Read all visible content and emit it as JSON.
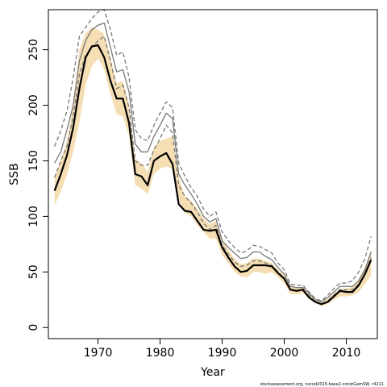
{
  "chart_data": {
    "type": "line",
    "xlabel": "Year",
    "ylabel": "SSB",
    "xlim": [
      1962,
      2015
    ],
    "ylim": [
      -10,
      286
    ],
    "x_ticks": [
      1970,
      1980,
      1990,
      2000,
      2010
    ],
    "y_ticks": [
      0,
      50,
      100,
      150,
      200,
      250
    ],
    "grid": false,
    "legend": "none",
    "x": [
      1963,
      1964,
      1965,
      1966,
      1967,
      1968,
      1969,
      1970,
      1971,
      1972,
      1973,
      1974,
      1975,
      1976,
      1977,
      1978,
      1979,
      1980,
      1981,
      1982,
      1983,
      1984,
      1985,
      1986,
      1987,
      1988,
      1989,
      1990,
      1991,
      1992,
      1993,
      1994,
      1995,
      1996,
      1997,
      1998,
      1999,
      2000,
      2001,
      2002,
      2003,
      2004,
      2005,
      2006,
      2007,
      2008,
      2009,
      2010,
      2011,
      2012,
      2013,
      2014
    ],
    "series": [
      {
        "style": "band",
        "color": "#f5deb3",
        "lower": [
          110,
          122,
          138,
          158,
          185,
          218,
          235,
          242,
          232,
          210,
          192,
          190,
          172,
          128,
          125,
          120,
          138,
          143,
          145,
          143,
          115,
          103,
          100,
          92,
          86,
          80,
          80,
          65,
          58,
          50,
          46,
          45,
          50,
          50,
          48,
          50,
          45,
          40,
          30,
          30,
          31,
          26,
          22,
          19,
          21,
          25,
          28,
          28,
          29,
          32,
          39,
          47
        ],
        "upper": [
          135,
          150,
          168,
          200,
          250,
          265,
          270,
          268,
          264,
          243,
          220,
          222,
          200,
          152,
          148,
          140,
          162,
          168,
          170,
          172,
          135,
          118,
          114,
          107,
          98,
          93,
          96,
          80,
          70,
          62,
          57,
          58,
          62,
          62,
          60,
          58,
          52,
          48,
          37,
          36,
          36,
          30,
          26,
          23,
          26,
          31,
          35,
          35,
          37,
          44,
          54,
          70
        ]
      },
      {
        "style": "solid",
        "color": "#000000",
        "values": [
          123,
          138,
          155,
          180,
          215,
          243,
          253,
          254,
          243,
          222,
          206,
          206,
          184,
          138,
          136,
          128,
          150,
          154,
          157,
          147,
          111,
          105,
          104,
          96,
          88,
          87,
          88,
          72,
          63,
          55,
          50,
          51,
          56,
          56,
          56,
          55,
          49,
          44,
          34,
          33,
          34,
          27,
          23,
          21,
          23,
          28,
          33,
          32,
          32,
          38,
          48,
          61
        ]
      },
      {
        "style": "solid",
        "color": "#777777",
        "values": [
          148,
          158,
          178,
          200,
          240,
          258,
          268,
          272,
          274,
          252,
          230,
          232,
          212,
          165,
          158,
          158,
          172,
          182,
          193,
          188,
          138,
          128,
          120,
          111,
          100,
          95,
          98,
          78,
          72,
          67,
          62,
          63,
          68,
          68,
          64,
          61,
          54,
          48,
          37,
          36,
          36,
          31,
          25,
          23,
          27,
          32,
          37,
          37,
          37,
          42,
          52,
          68
        ]
      },
      {
        "style": "dashed",
        "color": "#777777",
        "values": [
          163,
          177,
          195,
          225,
          262,
          270,
          278,
          284,
          286,
          268,
          245,
          248,
          225,
          178,
          170,
          168,
          182,
          193,
          203,
          198,
          148,
          136,
          126,
          118,
          107,
          100,
          104,
          86,
          78,
          72,
          67,
          69,
          74,
          73,
          70,
          67,
          58,
          52,
          39,
          38,
          38,
          32,
          26,
          24,
          29,
          35,
          40,
          40,
          42,
          50,
          62,
          82
        ]
      },
      {
        "style": "dashed",
        "color": "#777777",
        "values": [
          135,
          150,
          163,
          190,
          228,
          245,
          252,
          258,
          262,
          240,
          215,
          218,
          198,
          150,
          146,
          146,
          160,
          170,
          182,
          175,
          128,
          118,
          112,
          104,
          94,
          88,
          92,
          74,
          66,
          59,
          55,
          56,
          60,
          60,
          58,
          56,
          50,
          44,
          34,
          33,
          34,
          29,
          23,
          21,
          24,
          29,
          34,
          34,
          34,
          39,
          48,
          63
        ]
      }
    ]
  },
  "footer": "stockassessment.org, nscod2015-base2-constGamSW, r4211"
}
